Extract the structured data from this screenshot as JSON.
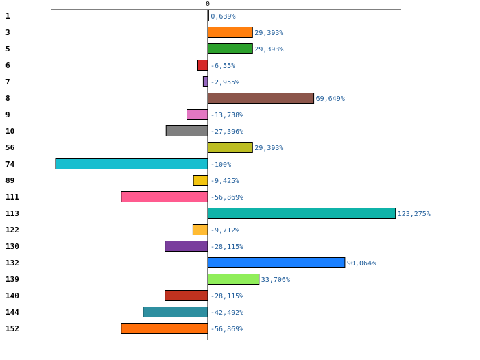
{
  "chart_data": {
    "type": "bar",
    "orientation": "horizontal",
    "title": "",
    "xlabel": "",
    "ylabel": "",
    "zero_tick_label": "0",
    "xlim": [
      -100,
      125
    ],
    "categories": [
      "1",
      "3",
      "5",
      "6",
      "7",
      "8",
      "9",
      "10",
      "56",
      "74",
      "89",
      "111",
      "113",
      "122",
      "130",
      "132",
      "139",
      "140",
      "144",
      "152"
    ],
    "values": [
      0.639,
      29.393,
      29.393,
      -6.55,
      -2.955,
      69.649,
      -13.738,
      -27.396,
      29.393,
      -100,
      -9.425,
      -56.869,
      123.275,
      -9.712,
      -28.115,
      90.064,
      33.706,
      -28.115,
      -42.492,
      -56.869
    ],
    "value_labels": [
      "0,639%",
      "29,393%",
      "29,393%",
      "-6,55%",
      "-2,955%",
      "69,649%",
      "-13,738%",
      "-27,396%",
      "29,393%",
      "-100%",
      "-9,425%",
      "-56,869%",
      "123,275%",
      "-9,712%",
      "-28,115%",
      "90,064%",
      "33,706%",
      "-28,115%",
      "-42,492%",
      "-56,869%"
    ],
    "colors": [
      "#1f77b4",
      "#ff7f0e",
      "#2ca02c",
      "#d62728",
      "#9467bd",
      "#8c564b",
      "#e377c2",
      "#7f7f7f",
      "#bcbd22",
      "#17becf",
      "#f2c40f",
      "#ff5b8f",
      "#0fb3a9",
      "#ffbb33",
      "#7a3e9d",
      "#1a80ff",
      "#90ee5a",
      "#c0321f",
      "#2e8fa0",
      "#ff6f0a"
    ]
  }
}
